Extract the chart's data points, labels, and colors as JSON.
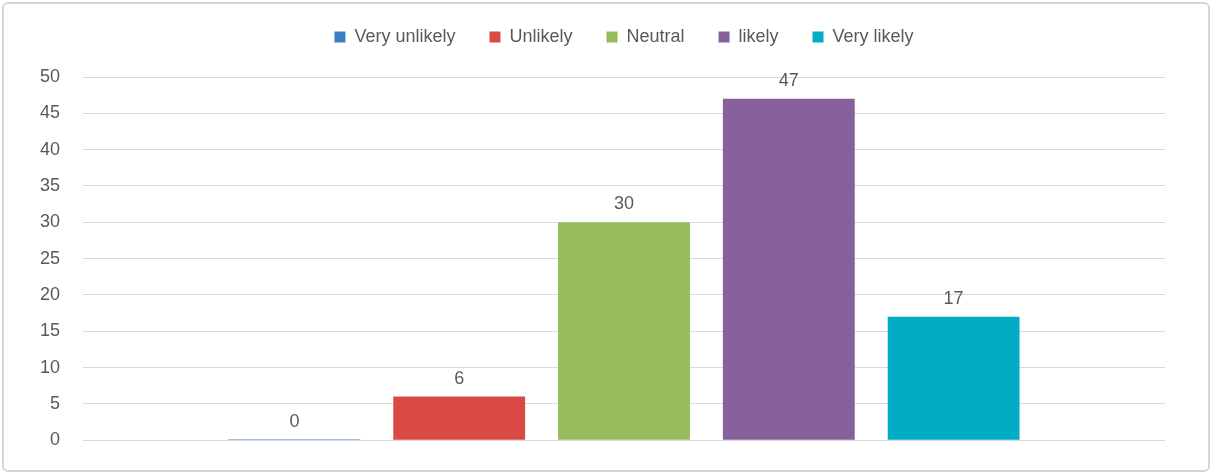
{
  "chart_data": {
    "type": "bar",
    "categories": [
      null
    ],
    "series": [
      {
        "name": "Very unlikely",
        "color": "#3a7fc1",
        "values": [
          0
        ]
      },
      {
        "name": "Unlikely",
        "color": "#d94a45",
        "values": [
          6
        ]
      },
      {
        "name": "Neutral",
        "color": "#95bb5a",
        "values": [
          30
        ]
      },
      {
        "name": "likely",
        "color": "#86609b",
        "values": [
          47
        ]
      },
      {
        "name": "Very likely",
        "color": "#01acc5",
        "values": [
          17
        ]
      }
    ],
    "ylim": [
      0,
      50
    ],
    "yticks": [
      0,
      5,
      10,
      15,
      20,
      25,
      30,
      35,
      40,
      45,
      50
    ],
    "grid": "y",
    "legend": "top",
    "data_labels": true
  }
}
